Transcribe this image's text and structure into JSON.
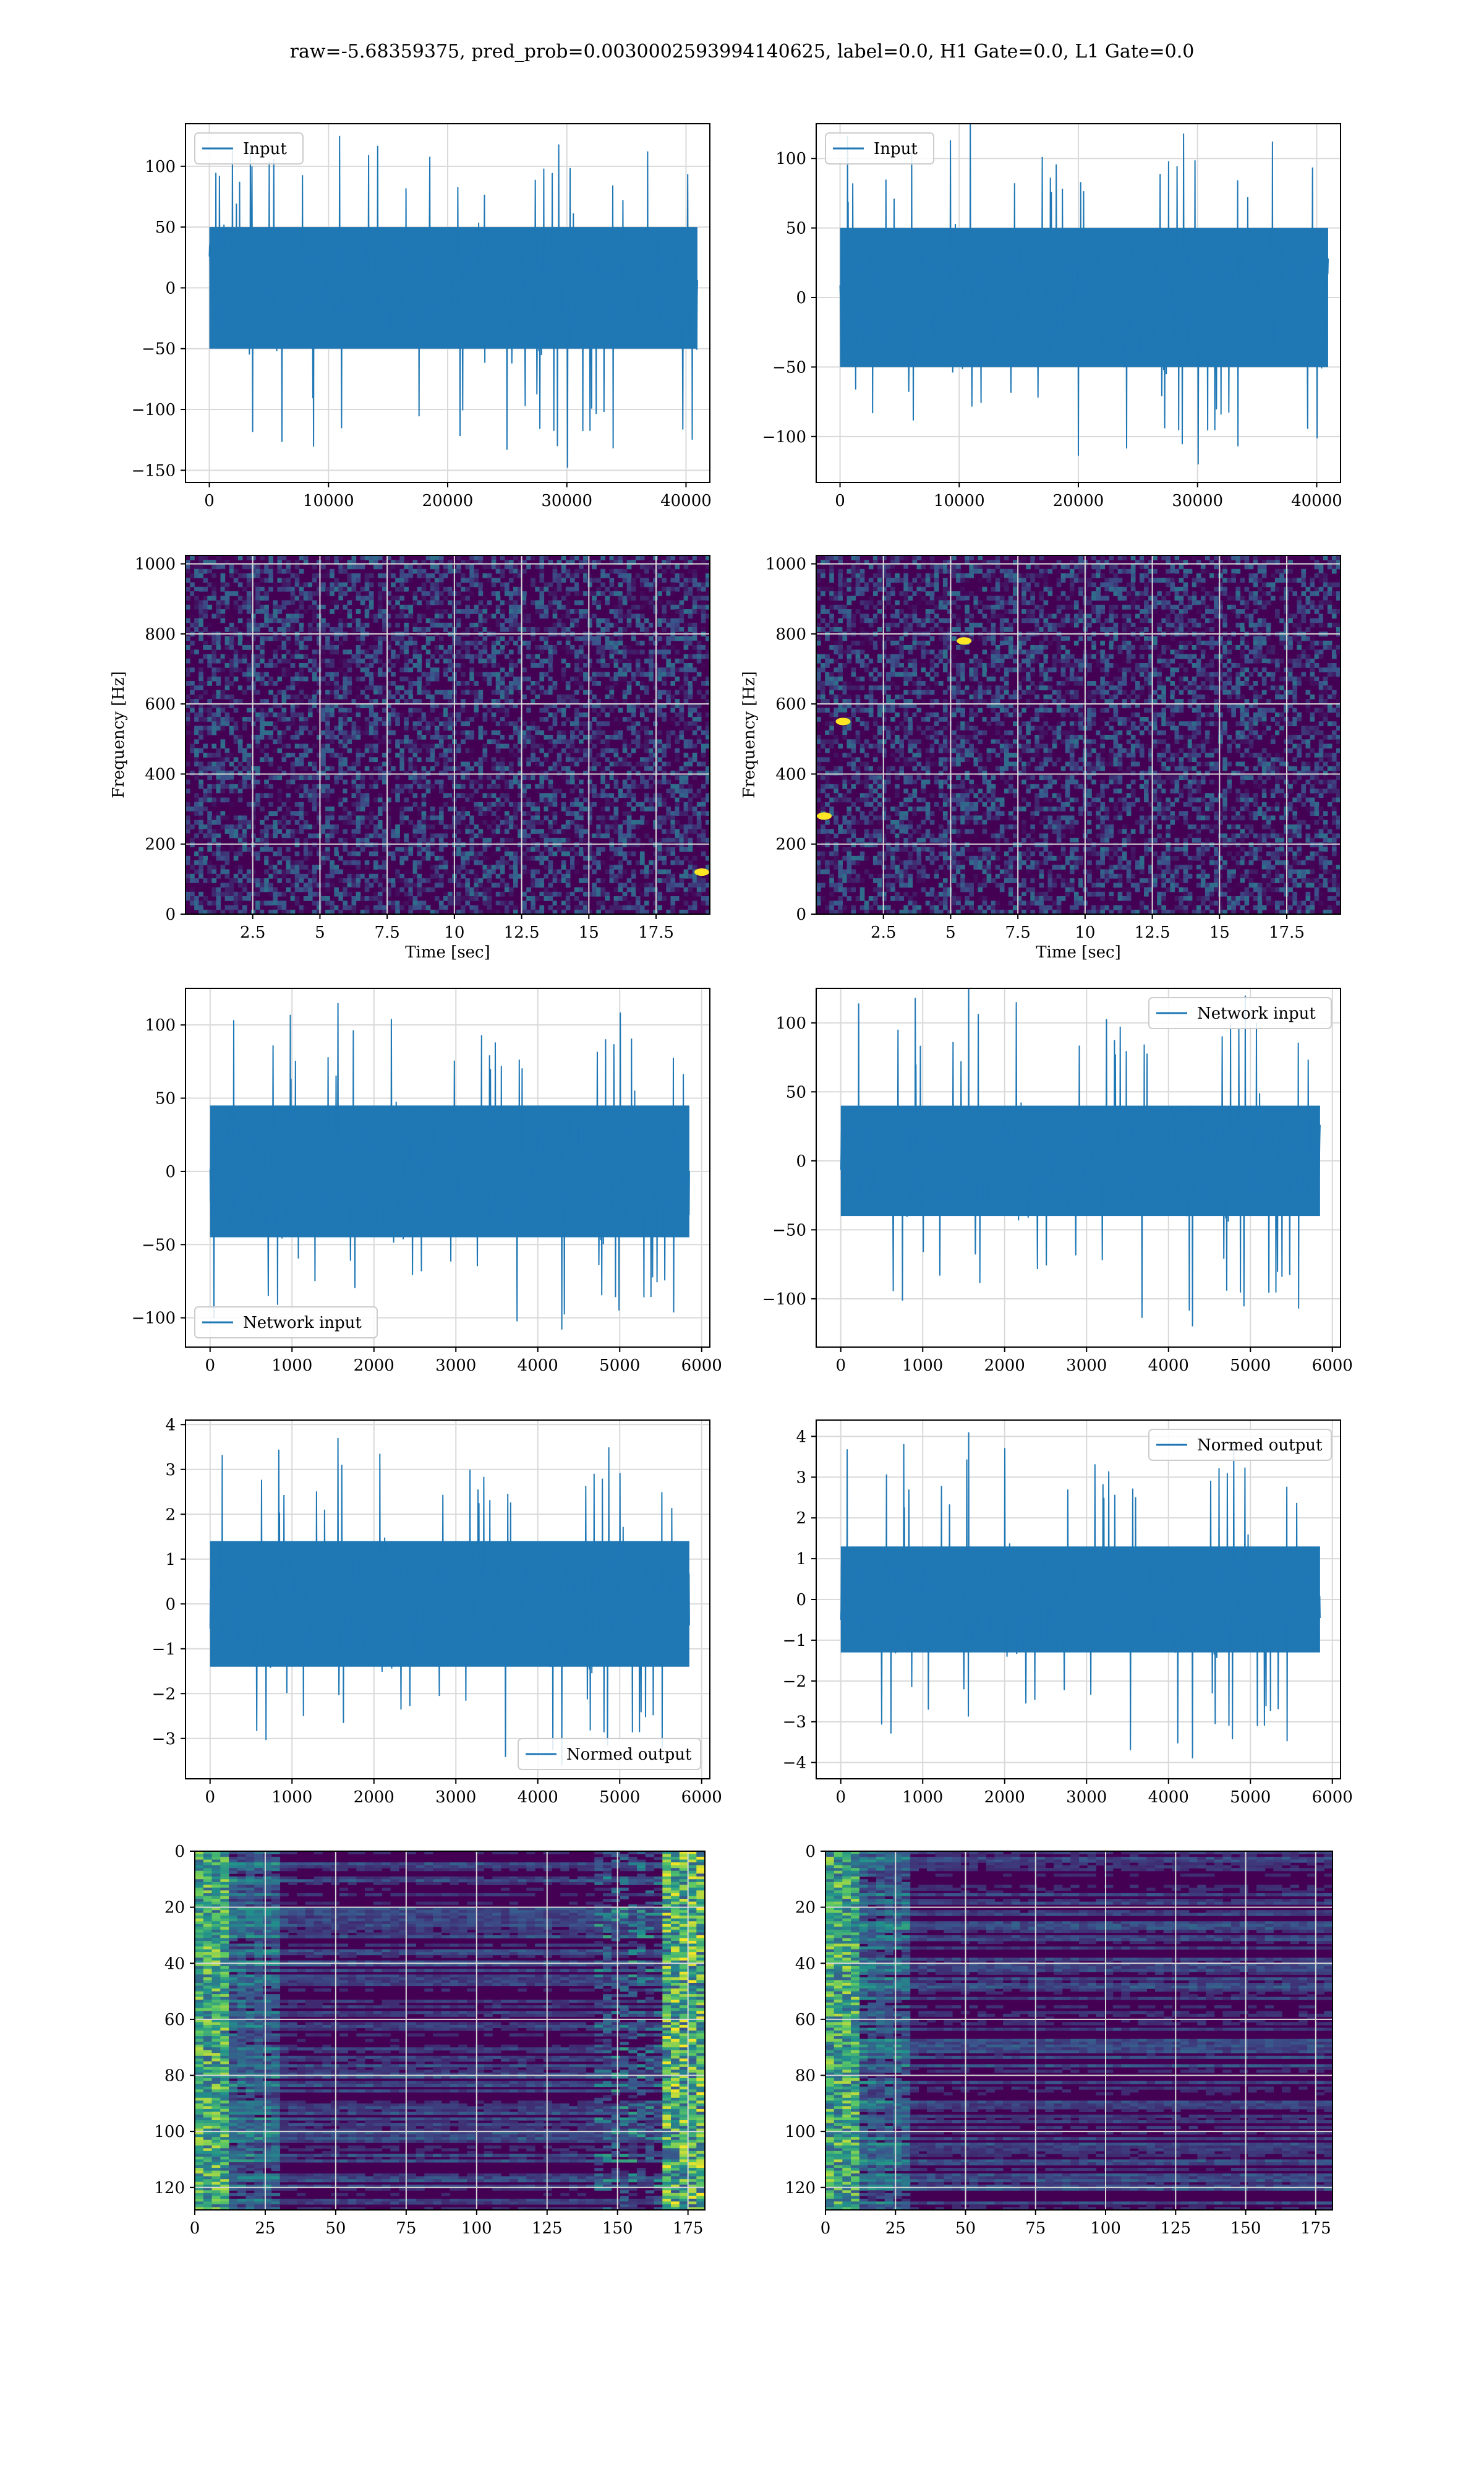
{
  "figure": {
    "suptitle": "raw=-5.68359375, pred_prob=0.0030002593994140625, label=0.0, H1 Gate=0.0, L1 Gate=0.0"
  },
  "colors": {
    "line": "#1f77b4",
    "grid": "#d9d9d9",
    "viridis_low": "#440154",
    "viridis_mid": "#21918c",
    "viridis_high": "#fde725"
  },
  "chart_data": [
    {
      "id": "h1-input",
      "type": "line",
      "legend": [
        "Input"
      ],
      "legend_loc": "upper-left",
      "xlim": [
        -2000,
        42000
      ],
      "ylim": [
        -160,
        135
      ],
      "xticks": [
        0,
        10000,
        20000,
        30000,
        40000
      ],
      "yticks": [
        -150,
        -100,
        -50,
        0,
        50,
        100
      ],
      "series": [
        {
          "name": "Input",
          "x_start": 0,
          "x_end": 40960,
          "envelope": [
            -50,
            50
          ],
          "peak_max": 125,
          "peak_min": -148
        }
      ]
    },
    {
      "id": "l1-input",
      "type": "line",
      "legend": [
        "Input"
      ],
      "legend_loc": "upper-left",
      "xlim": [
        -2000,
        42000
      ],
      "ylim": [
        -133,
        125
      ],
      "xticks": [
        0,
        10000,
        20000,
        30000,
        40000
      ],
      "yticks": [
        -100,
        -50,
        0,
        50,
        100
      ],
      "series": [
        {
          "name": "Input",
          "x_start": 0,
          "x_end": 40960,
          "envelope": [
            -50,
            50
          ],
          "peak_max": 125,
          "peak_min": -120
        }
      ]
    },
    {
      "id": "h1-spectrogram",
      "type": "heatmap",
      "xlabel": "Time [sec]",
      "ylabel": "Frequency [Hz]",
      "xlim": [
        0,
        19.5
      ],
      "ylim": [
        0,
        1024
      ],
      "xticks": [
        2.5,
        5.0,
        7.5,
        10.0,
        12.5,
        15.0,
        17.5
      ],
      "yticks": [
        0,
        200,
        400,
        600,
        800,
        1000
      ],
      "colormap": "viridis",
      "hot_spots": [
        {
          "x": 19.2,
          "y": 120
        }
      ]
    },
    {
      "id": "l1-spectrogram",
      "type": "heatmap",
      "xlabel": "Time [sec]",
      "ylabel": "Frequency [Hz]",
      "xlim": [
        0,
        19.5
      ],
      "ylim": [
        0,
        1024
      ],
      "xticks": [
        2.5,
        5.0,
        7.5,
        10.0,
        12.5,
        15.0,
        17.5
      ],
      "yticks": [
        0,
        200,
        400,
        600,
        800,
        1000
      ],
      "colormap": "viridis",
      "hot_spots": [
        {
          "x": 1.0,
          "y": 550
        },
        {
          "x": 5.5,
          "y": 780
        },
        {
          "x": 0.3,
          "y": 280
        }
      ]
    },
    {
      "id": "h1-network-input",
      "type": "line",
      "legend": [
        "Network input"
      ],
      "legend_loc": "lower-left",
      "xlim": [
        -300,
        6100
      ],
      "ylim": [
        -120,
        125
      ],
      "xticks": [
        0,
        1000,
        2000,
        3000,
        4000,
        5000,
        6000
      ],
      "yticks": [
        -100,
        -50,
        0,
        50,
        100
      ],
      "series": [
        {
          "name": "Network input",
          "x_start": 0,
          "x_end": 5850,
          "envelope": [
            -45,
            45
          ],
          "peak_max": 115,
          "peak_min": -108
        }
      ]
    },
    {
      "id": "l1-network-input",
      "type": "line",
      "legend": [
        "Network input"
      ],
      "legend_loc": "upper-right",
      "xlim": [
        -300,
        6100
      ],
      "ylim": [
        -135,
        125
      ],
      "xticks": [
        0,
        1000,
        2000,
        3000,
        4000,
        5000,
        6000
      ],
      "yticks": [
        -100,
        -50,
        0,
        50,
        100
      ],
      "series": [
        {
          "name": "Network input",
          "x_start": 0,
          "x_end": 5850,
          "envelope": [
            -40,
            40
          ],
          "peak_max": 127,
          "peak_min": -120
        }
      ]
    },
    {
      "id": "h1-normed-output",
      "type": "line",
      "legend": [
        "Normed output"
      ],
      "legend_loc": "lower-right",
      "xlim": [
        -300,
        6100
      ],
      "ylim": [
        -3.9,
        4.1
      ],
      "xticks": [
        0,
        1000,
        2000,
        3000,
        4000,
        5000,
        6000
      ],
      "yticks": [
        -3,
        -2,
        -1,
        0,
        1,
        2,
        3,
        4
      ],
      "series": [
        {
          "name": "Normed output",
          "x_start": 0,
          "x_end": 5850,
          "envelope": [
            -1.4,
            1.4
          ],
          "peak_max": 3.7,
          "peak_min": -3.6
        }
      ]
    },
    {
      "id": "l1-normed-output",
      "type": "line",
      "legend": [
        "Normed output"
      ],
      "legend_loc": "upper-right",
      "xlim": [
        -300,
        6100
      ],
      "ylim": [
        -4.4,
        4.4
      ],
      "xticks": [
        0,
        1000,
        2000,
        3000,
        4000,
        5000,
        6000
      ],
      "yticks": [
        -4,
        -3,
        -2,
        -1,
        0,
        1,
        2,
        3,
        4
      ],
      "series": [
        {
          "name": "Normed output",
          "x_start": 0,
          "x_end": 5850,
          "envelope": [
            -1.3,
            1.3
          ],
          "peak_max": 4.1,
          "peak_min": -3.9
        }
      ]
    },
    {
      "id": "h1-feature-map",
      "type": "heatmap",
      "xlim": [
        0,
        181
      ],
      "ylim": [
        128,
        0
      ],
      "xticks": [
        0,
        25,
        50,
        75,
        100,
        125,
        150,
        175
      ],
      "yticks": [
        0,
        20,
        40,
        60,
        80,
        100,
        120
      ],
      "colormap": "viridis",
      "bright_columns": [
        0,
        1,
        2,
        3,
        4,
        5,
        6,
        7,
        8,
        9,
        10,
        170,
        171,
        172,
        173,
        174,
        175,
        176,
        177,
        178,
        179,
        180
      ]
    },
    {
      "id": "l1-feature-map",
      "type": "heatmap",
      "xlim": [
        0,
        181
      ],
      "ylim": [
        128,
        0
      ],
      "xticks": [
        0,
        25,
        50,
        75,
        100,
        125,
        150,
        175
      ],
      "yticks": [
        0,
        20,
        40,
        60,
        80,
        100,
        120
      ],
      "colormap": "viridis",
      "bright_columns": [
        0,
        1,
        2,
        3,
        4,
        5,
        6,
        7,
        8,
        9,
        10,
        11,
        12
      ]
    }
  ]
}
